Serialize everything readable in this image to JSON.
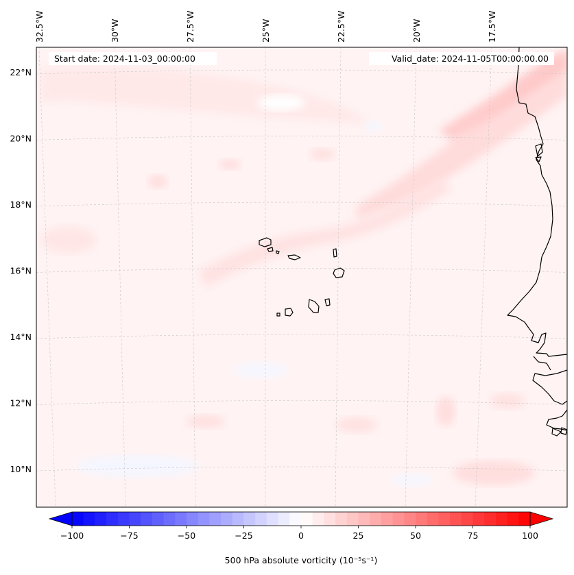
{
  "map": {
    "header": {
      "start_label": "Start date: 2024-11-03_00:00:00",
      "valid_label": "Valid_date: 2024-11-05T00:00:00.00"
    },
    "lon_labels": [
      {
        "text": "32.5°W",
        "lon": -32.5
      },
      {
        "text": "30°W",
        "lon": -30.0
      },
      {
        "text": "27.5°W",
        "lon": -27.5
      },
      {
        "text": "25°W",
        "lon": -25.0
      },
      {
        "text": "22.5°W",
        "lon": -22.5
      },
      {
        "text": "20°W",
        "lon": -20.0
      },
      {
        "text": "17.5°W",
        "lon": -17.5
      }
    ],
    "lat_labels": [
      {
        "text": "22°N",
        "lat": 22
      },
      {
        "text": "20°N",
        "lat": 20
      },
      {
        "text": "18°N",
        "lat": 18
      },
      {
        "text": "16°N",
        "lat": 16
      },
      {
        "text": "14°N",
        "lat": 14
      },
      {
        "text": "12°N",
        "lat": 12
      },
      {
        "text": "10°N",
        "lat": 10
      }
    ],
    "colorbar": {
      "label": "500 hPa absolute vorticity (10⁻⁵s⁻¹)",
      "min": -100,
      "max": 100,
      "extend": "both",
      "cmap": "bwr",
      "ticks": [
        "−100",
        "−75",
        "−50",
        "−25",
        "0",
        "25",
        "50",
        "75",
        "100"
      ]
    },
    "colors": {
      "negative": "#0000ff",
      "neutral": "#ffffff",
      "positive": "#ff0000",
      "coast": "#000000",
      "gridline": "#c8c8c8"
    }
  }
}
